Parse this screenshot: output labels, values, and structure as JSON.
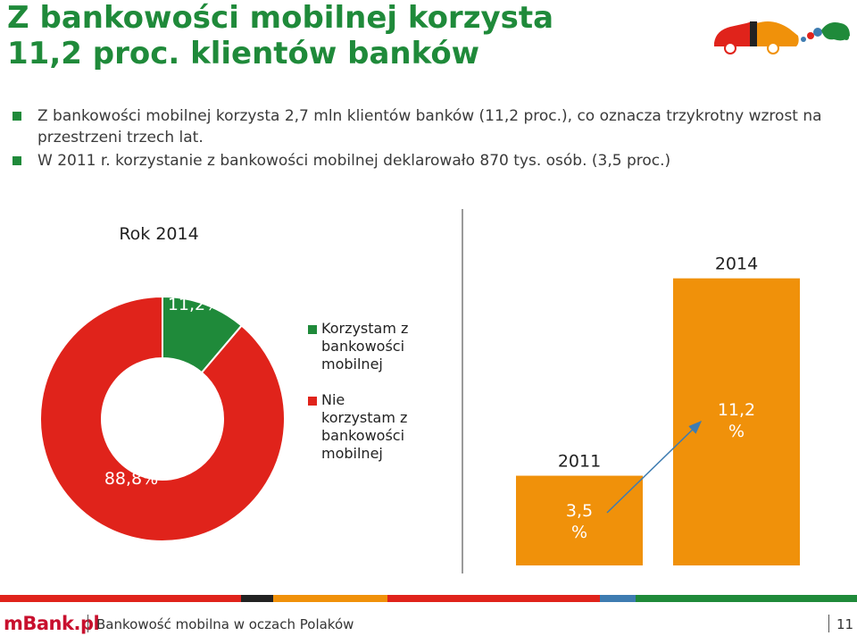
{
  "title": {
    "line1": "Z bankowości mobilnej korzysta",
    "line2": "11,2 proc. klientów banków"
  },
  "bullets": [
    "Z bankowości mobilnej korzysta 2,7 mln klientów banków (11,2 proc.), co oznacza trzykrotny wzrost na przestrzeni trzech lat.",
    "W 2011 r. korzystanie z bankowości mobilnej deklarowało 870 tys. osób. (3,5 proc.)"
  ],
  "colors": {
    "green": "#1f8a3a",
    "red": "#e0231b",
    "orange": "#f0910a",
    "blue": "#3e7cb1",
    "text": "#222222"
  },
  "chart_data": [
    {
      "type": "pie",
      "variant": "donut",
      "title": "Rok 2014",
      "slices": [
        {
          "label": "Korzystam z bankowości mobilnej",
          "value": 11.2,
          "display": "11,2%",
          "color": "#1f8a3a"
        },
        {
          "label": "Nie korzystam z bankowości mobilnej",
          "value": 88.8,
          "display": "88,8%",
          "color": "#e0231b"
        }
      ],
      "legend": [
        {
          "lines": [
            "Korzystam z",
            "bankowości",
            "mobilnej"
          ],
          "color": "#1f8a3a"
        },
        {
          "lines": [
            "Nie",
            "korzystam z",
            "bankowości",
            "mobilnej"
          ],
          "color": "#e0231b"
        }
      ],
      "legend_position": "right"
    },
    {
      "type": "bar",
      "categories": [
        "2011",
        "2014"
      ],
      "values": [
        3.5,
        11.2
      ],
      "labels": [
        [
          "3,5",
          "%"
        ],
        [
          "11,2",
          "%"
        ]
      ],
      "ylim": [
        0,
        11.5
      ],
      "color": "#f0910a",
      "annotation": "growth-arrow"
    }
  ],
  "footer": {
    "brand": "mBank.pl",
    "text": "Bankowość mobilna w oczach Polaków",
    "page": "11",
    "stripe": [
      {
        "color": "#e0231b",
        "weight": 270
      },
      {
        "color": "#222222",
        "weight": 36
      },
      {
        "color": "#f0910a",
        "weight": 128
      },
      {
        "color": "#e0231b",
        "weight": 238
      },
      {
        "color": "#3e7cb1",
        "weight": 40
      },
      {
        "color": "#1f8a3a",
        "weight": 248
      }
    ]
  }
}
